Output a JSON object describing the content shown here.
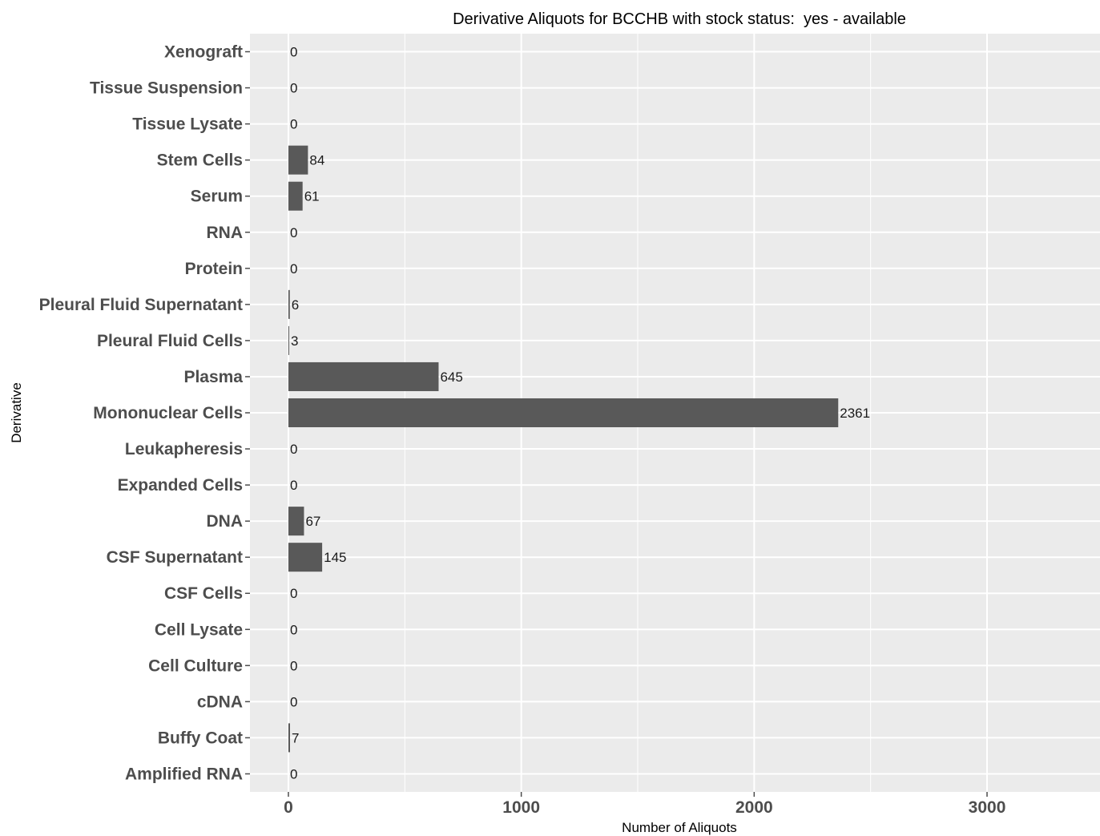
{
  "chart_data": {
    "type": "bar",
    "orientation": "horizontal",
    "title": "Derivative Aliquots for BCCHB with stock status:  yes - available",
    "xlabel": "Number of Aliquots",
    "ylabel": "Derivative",
    "xlim": [
      -165,
      3485
    ],
    "x_ticks": [
      0,
      1000,
      2000,
      3000
    ],
    "grid": true,
    "legend": "none",
    "categories": [
      "Xenograft",
      "Tissue Suspension",
      "Tissue Lysate",
      "Stem Cells",
      "Serum",
      "RNA",
      "Protein",
      "Pleural Fluid Supernatant",
      "Pleural Fluid Cells",
      "Plasma",
      "Mononuclear Cells",
      "Leukapheresis",
      "Expanded Cells",
      "DNA",
      "CSF Supernatant",
      "CSF Cells",
      "Cell Lysate",
      "Cell Culture",
      "cDNA",
      "Buffy Coat",
      "Amplified RNA"
    ],
    "values": [
      0,
      0,
      0,
      84,
      61,
      0,
      0,
      6,
      3,
      645,
      2361,
      0,
      0,
      67,
      145,
      0,
      0,
      0,
      0,
      7,
      0
    ],
    "colors": {
      "bar": "#595959",
      "panel": "#ebebeb",
      "grid": "#ffffff",
      "tick_text": "#4d4d4d",
      "value_text": "#1a1a1a"
    }
  }
}
